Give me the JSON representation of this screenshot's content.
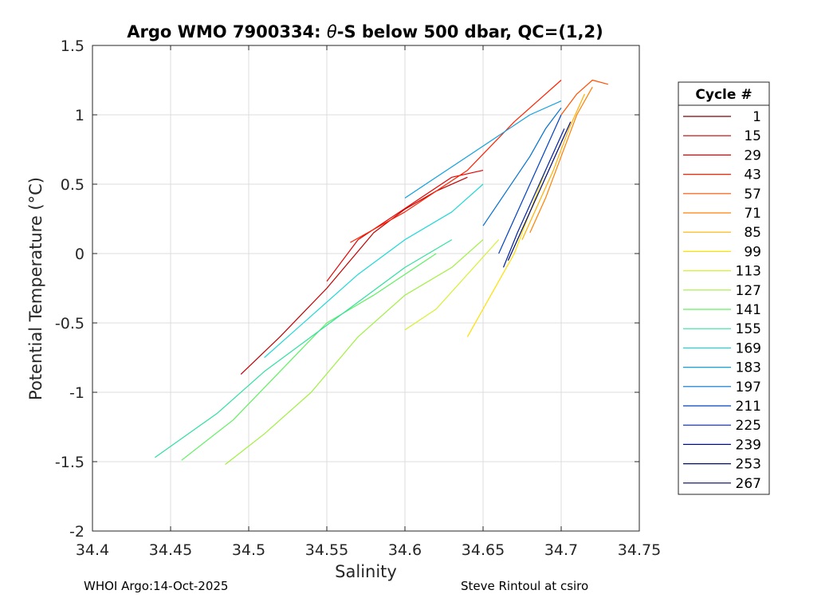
{
  "chart_data": {
    "type": "line",
    "title": "Argo WMO 7900334: θ-S below 500 dbar,  QC=(1,2)",
    "xlabel": "Salinity",
    "ylabel": "Potential Temperature (°C)",
    "xlim": [
      34.4,
      34.75
    ],
    "ylim": [
      -2,
      1.5
    ],
    "x_ticks": [
      "34.4",
      "34.45",
      "34.5",
      "34.55",
      "34.6",
      "34.65",
      "34.7",
      "34.75"
    ],
    "y_ticks": [
      "-2",
      "-1.5",
      "-1",
      "-0.5",
      "0",
      "0.5",
      "1",
      "1.5"
    ],
    "grid": true,
    "legend": {
      "title": "Cycle #",
      "placement": "right-outside",
      "entries": [
        "1",
        "15",
        "29",
        "43",
        "57",
        "71",
        "85",
        "99",
        "113",
        "127",
        "141",
        "155",
        "169",
        "183",
        "197",
        "211",
        "225",
        "239",
        "253",
        "267"
      ],
      "colors": [
        "#800000",
        "#c00000",
        "#e60000",
        "#ff2000",
        "#ff5000",
        "#ff8000",
        "#ffb000",
        "#ffe000",
        "#d8f030",
        "#a0f040",
        "#60f060",
        "#30e0a0",
        "#20d8d8",
        "#10a0e0",
        "#0070d0",
        "#0040c0",
        "#0020a0",
        "#001080",
        "#000a70",
        "#000060"
      ]
    },
    "series": [
      {
        "color": "#c00000",
        "x": [
          34.495,
          34.52,
          34.55,
          34.58,
          34.6,
          34.62,
          34.64
        ],
        "y": [
          -0.87,
          -0.6,
          -0.25,
          0.15,
          0.32,
          0.45,
          0.55
        ]
      },
      {
        "color": "#e60000",
        "x": [
          34.55,
          34.57,
          34.59,
          34.61,
          34.63,
          34.65
        ],
        "y": [
          -0.2,
          0.1,
          0.25,
          0.4,
          0.55,
          0.6
        ]
      },
      {
        "color": "#ff2000",
        "x": [
          34.565,
          34.6,
          34.64,
          34.67,
          34.7
        ],
        "y": [
          0.08,
          0.3,
          0.6,
          0.95,
          1.25
        ]
      },
      {
        "color": "#ff5000",
        "x": [
          34.7,
          34.71,
          34.72,
          34.73
        ],
        "y": [
          1.0,
          1.15,
          1.25,
          1.22
        ]
      },
      {
        "color": "#ff8000",
        "x": [
          34.68,
          34.69,
          34.7,
          34.71,
          34.72
        ],
        "y": [
          0.15,
          0.4,
          0.7,
          1.0,
          1.2
        ]
      },
      {
        "color": "#ffb000",
        "x": [
          34.675,
          34.685,
          34.695,
          34.705,
          34.715
        ],
        "y": [
          0.1,
          0.35,
          0.6,
          0.9,
          1.15
        ]
      },
      {
        "color": "#ffe000",
        "x": [
          34.64,
          34.655,
          34.67,
          34.68,
          34.69
        ],
        "y": [
          -0.6,
          -0.3,
          0.0,
          0.3,
          0.6
        ]
      },
      {
        "color": "#d8f030",
        "x": [
          34.6,
          34.62,
          34.64,
          34.66
        ],
        "y": [
          -0.55,
          -0.4,
          -0.15,
          0.1
        ]
      },
      {
        "color": "#a0f040",
        "x": [
          34.485,
          34.51,
          34.54,
          34.57,
          34.6,
          34.63,
          34.65
        ],
        "y": [
          -1.52,
          -1.3,
          -1.0,
          -0.6,
          -0.3,
          -0.1,
          0.1
        ]
      },
      {
        "color": "#60f060",
        "x": [
          34.457,
          34.49,
          34.52,
          34.55,
          34.58,
          34.6,
          34.62
        ],
        "y": [
          -1.49,
          -1.2,
          -0.85,
          -0.5,
          -0.3,
          -0.15,
          0.0
        ]
      },
      {
        "color": "#30e0a0",
        "x": [
          34.44,
          34.48,
          34.51,
          34.54,
          34.57,
          34.6,
          34.63
        ],
        "y": [
          -1.47,
          -1.15,
          -0.85,
          -0.6,
          -0.35,
          -0.1,
          0.1
        ]
      },
      {
        "color": "#20d8d8",
        "x": [
          34.51,
          34.54,
          34.57,
          34.6,
          34.63,
          34.65
        ],
        "y": [
          -0.75,
          -0.45,
          -0.15,
          0.1,
          0.3,
          0.5
        ]
      },
      {
        "color": "#10a0e0",
        "x": [
          34.6,
          34.62,
          34.64,
          34.66,
          34.68,
          34.7
        ],
        "y": [
          0.4,
          0.55,
          0.7,
          0.85,
          1.0,
          1.1
        ]
      },
      {
        "color": "#0070d0",
        "x": [
          34.65,
          34.665,
          34.68,
          34.69,
          34.7
        ],
        "y": [
          0.2,
          0.45,
          0.7,
          0.9,
          1.05
        ]
      },
      {
        "color": "#0040c0",
        "x": [
          34.66,
          34.67,
          34.68,
          34.69,
          34.7
        ],
        "y": [
          0.0,
          0.25,
          0.5,
          0.75,
          1.0
        ]
      },
      {
        "color": "#0020a0",
        "x": [
          34.663,
          34.672,
          34.682,
          34.692,
          34.702
        ],
        "y": [
          -0.1,
          0.15,
          0.4,
          0.65,
          0.9
        ]
      },
      {
        "color": "#000a70",
        "x": [
          34.666,
          34.676,
          34.686,
          34.696,
          34.706
        ],
        "y": [
          -0.05,
          0.2,
          0.45,
          0.7,
          0.95
        ]
      }
    ]
  },
  "footer": {
    "left": "WHOI Argo:14-Oct-2025",
    "right": "Steve Rintoul at csiro"
  }
}
